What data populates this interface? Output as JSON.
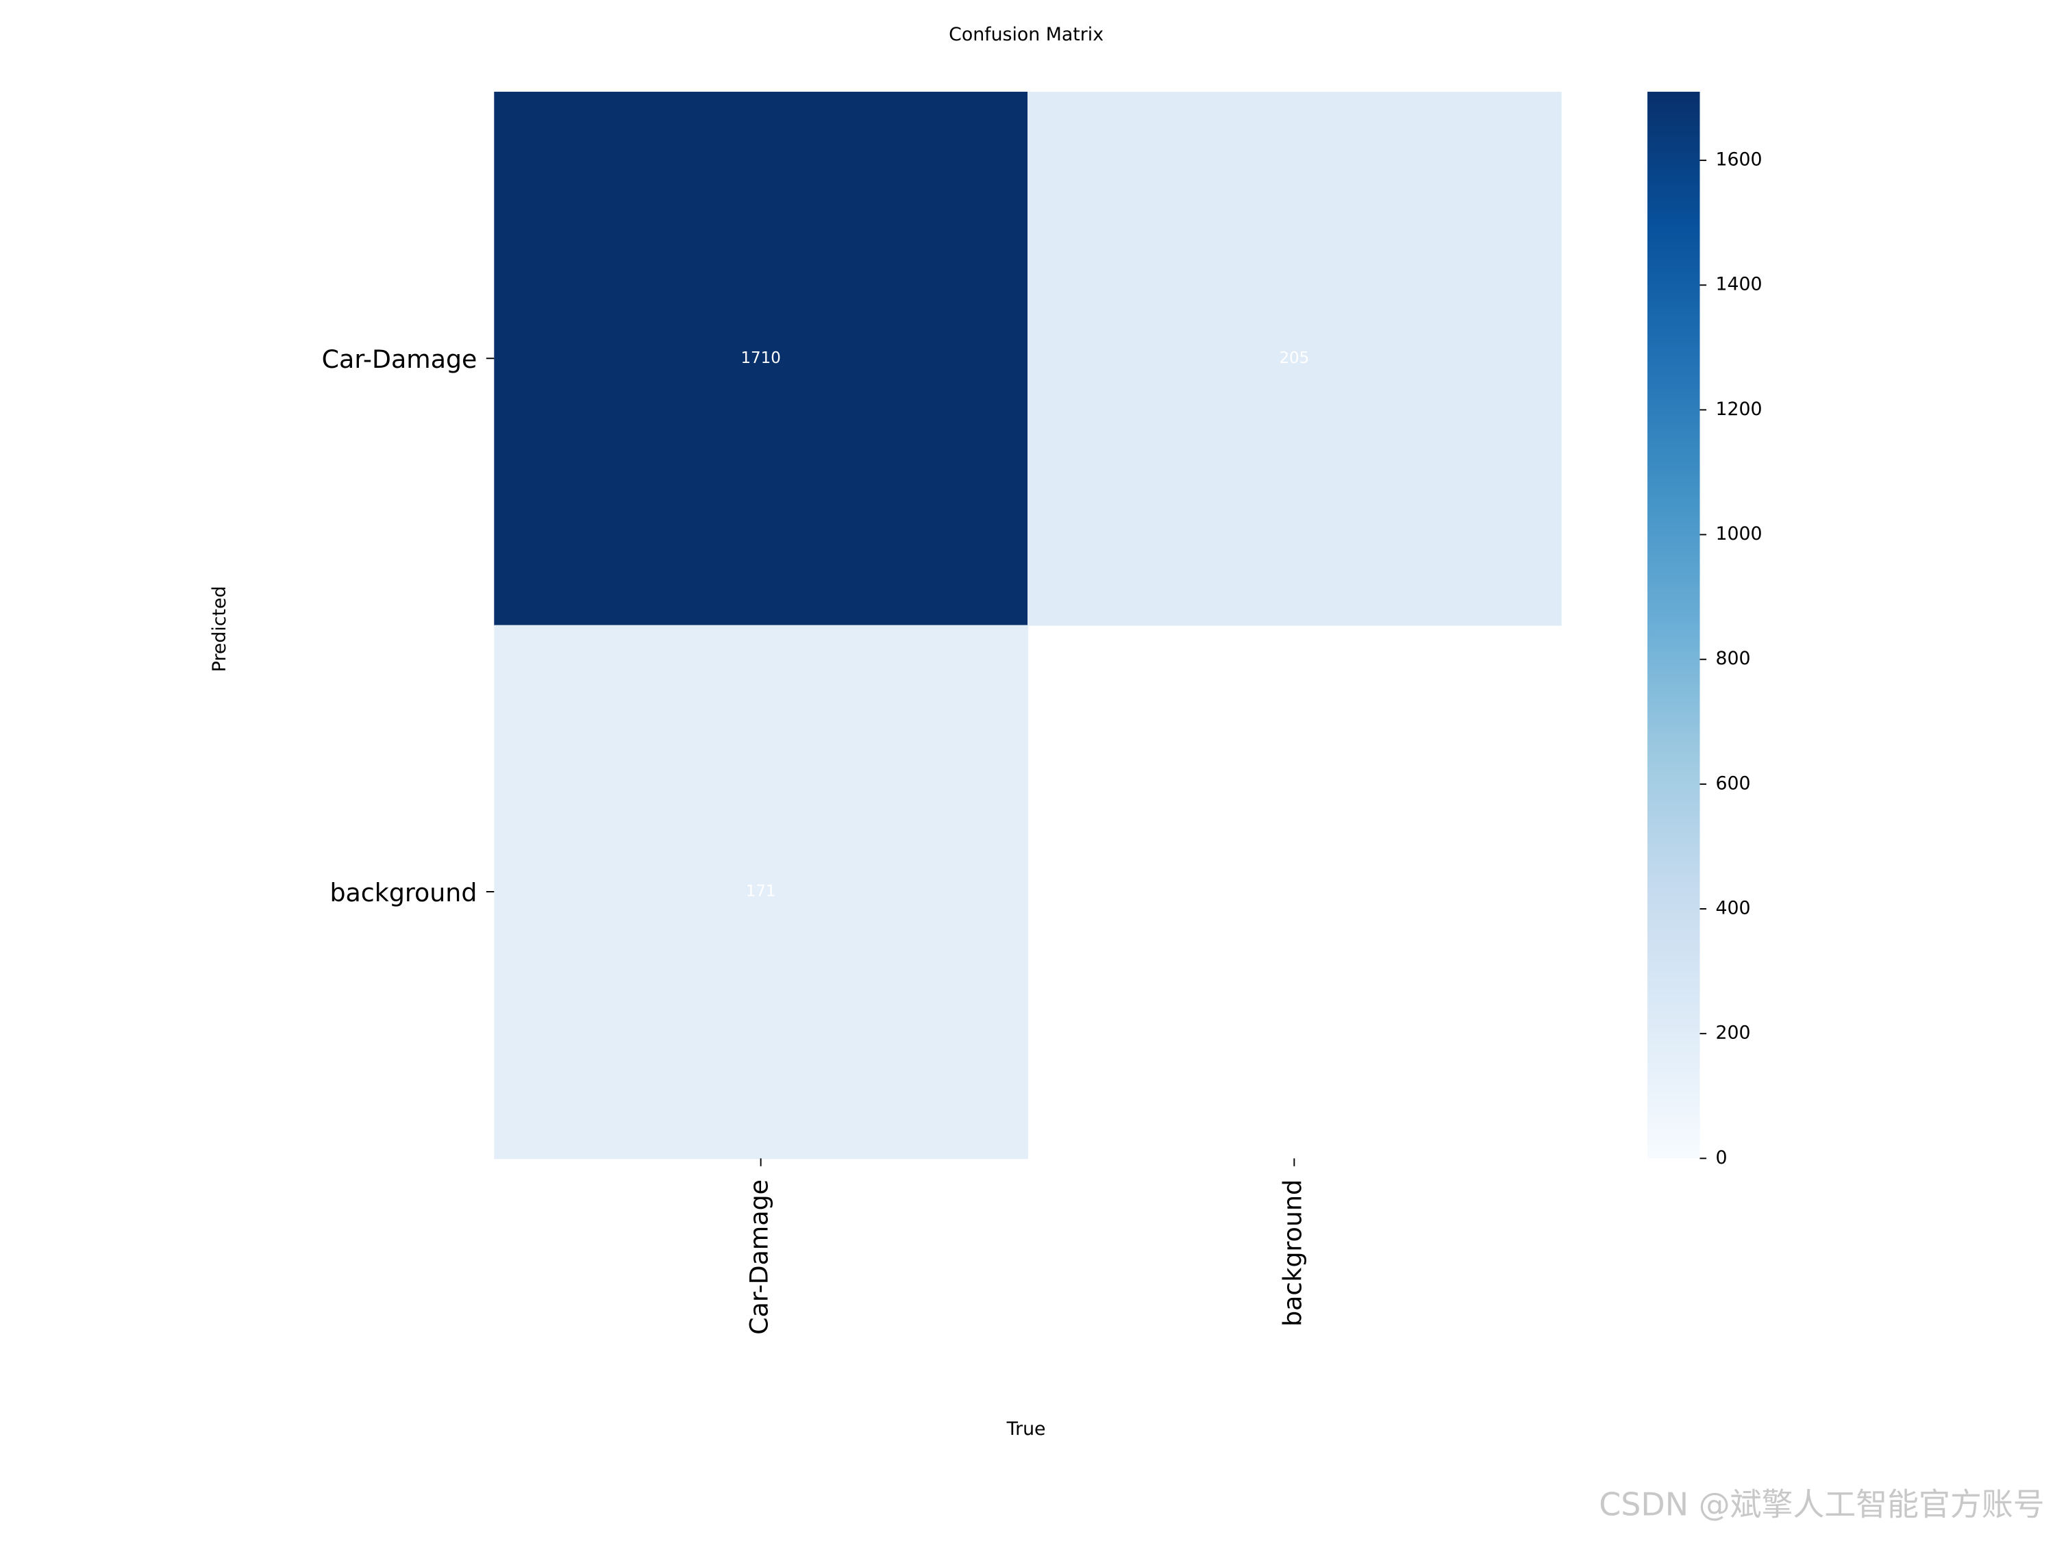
{
  "chart_data": {
    "type": "heatmap",
    "title": "Confusion Matrix",
    "xlabel": "True",
    "ylabel": "Predicted",
    "row_labels": [
      "Car-Damage",
      "background"
    ],
    "col_labels": [
      "Car-Damage",
      "background"
    ],
    "matrix": [
      [
        1710,
        205
      ],
      [
        171,
        null
      ]
    ],
    "colormap": [
      "#f7fbff",
      "#deebf7",
      "#c6dbef",
      "#9ecae1",
      "#6baed6",
      "#4292c6",
      "#2171b5",
      "#08519c",
      "#08306b"
    ],
    "zlim": [
      0,
      1710
    ],
    "zticks": [
      0,
      200,
      400,
      600,
      800,
      1000,
      1200,
      1400,
      1600
    ],
    "watermark": "CSDN @斌擎人工智能官方账号"
  }
}
